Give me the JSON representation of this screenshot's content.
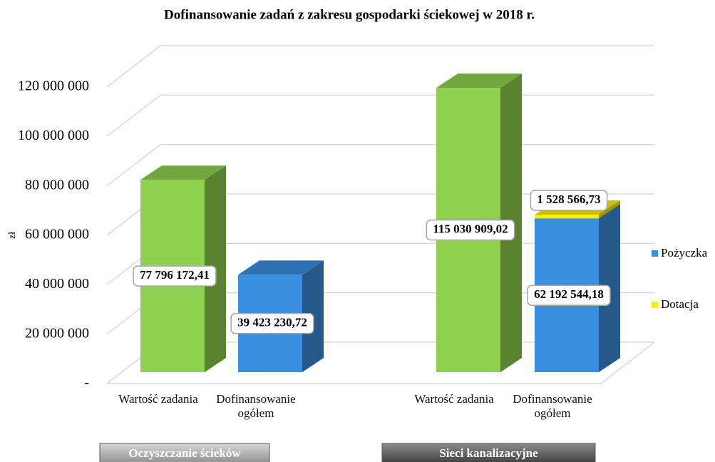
{
  "chart_data": {
    "type": "bar3d-stacked",
    "title": "Dofinansowanie zadań z zakresu gospodarki ściekowej w 2018 r.",
    "y_axis_label": "zł",
    "groups": [
      "Oczyszczanie ścieków",
      "Sieci kanalizacyjne"
    ],
    "categories": [
      "Wartość zadania",
      "Dofinansowanie ogółem",
      "Wartość zadania",
      "Dofinansowanie ogółem"
    ],
    "series": [
      {
        "color": "#8fd14f",
        "values": [
          77796172.41,
          null,
          115030909.02,
          null
        ],
        "value_labels": [
          "77 796 172,41",
          null,
          "115 030 909,02",
          null
        ]
      },
      {
        "name": "Pożyczka",
        "color": "#3b8fe0",
        "values": [
          null,
          39423230.72,
          null,
          62192544.18
        ],
        "value_labels": [
          null,
          "39 423 230,72",
          null,
          "62 192 544,18"
        ]
      },
      {
        "name": "Dotacja",
        "color": "#ffee00",
        "values": [
          null,
          null,
          null,
          1528566.73
        ],
        "value_labels": [
          null,
          null,
          null,
          "1 528 566,73"
        ]
      }
    ],
    "ylim": [
      0,
      120000000
    ],
    "yticks": [
      {
        "value": 0,
        "label": "-"
      },
      {
        "value": 20000000,
        "label": "20 000 000"
      },
      {
        "value": 40000000,
        "label": "40 000 000"
      },
      {
        "value": 60000000,
        "label": "60 000 000"
      },
      {
        "value": 80000000,
        "label": "80 000 000"
      },
      {
        "value": 100000000,
        "label": "100 000 000"
      },
      {
        "value": 120000000,
        "label": "120 000 000"
      }
    ],
    "grid": true,
    "legend": "right"
  }
}
